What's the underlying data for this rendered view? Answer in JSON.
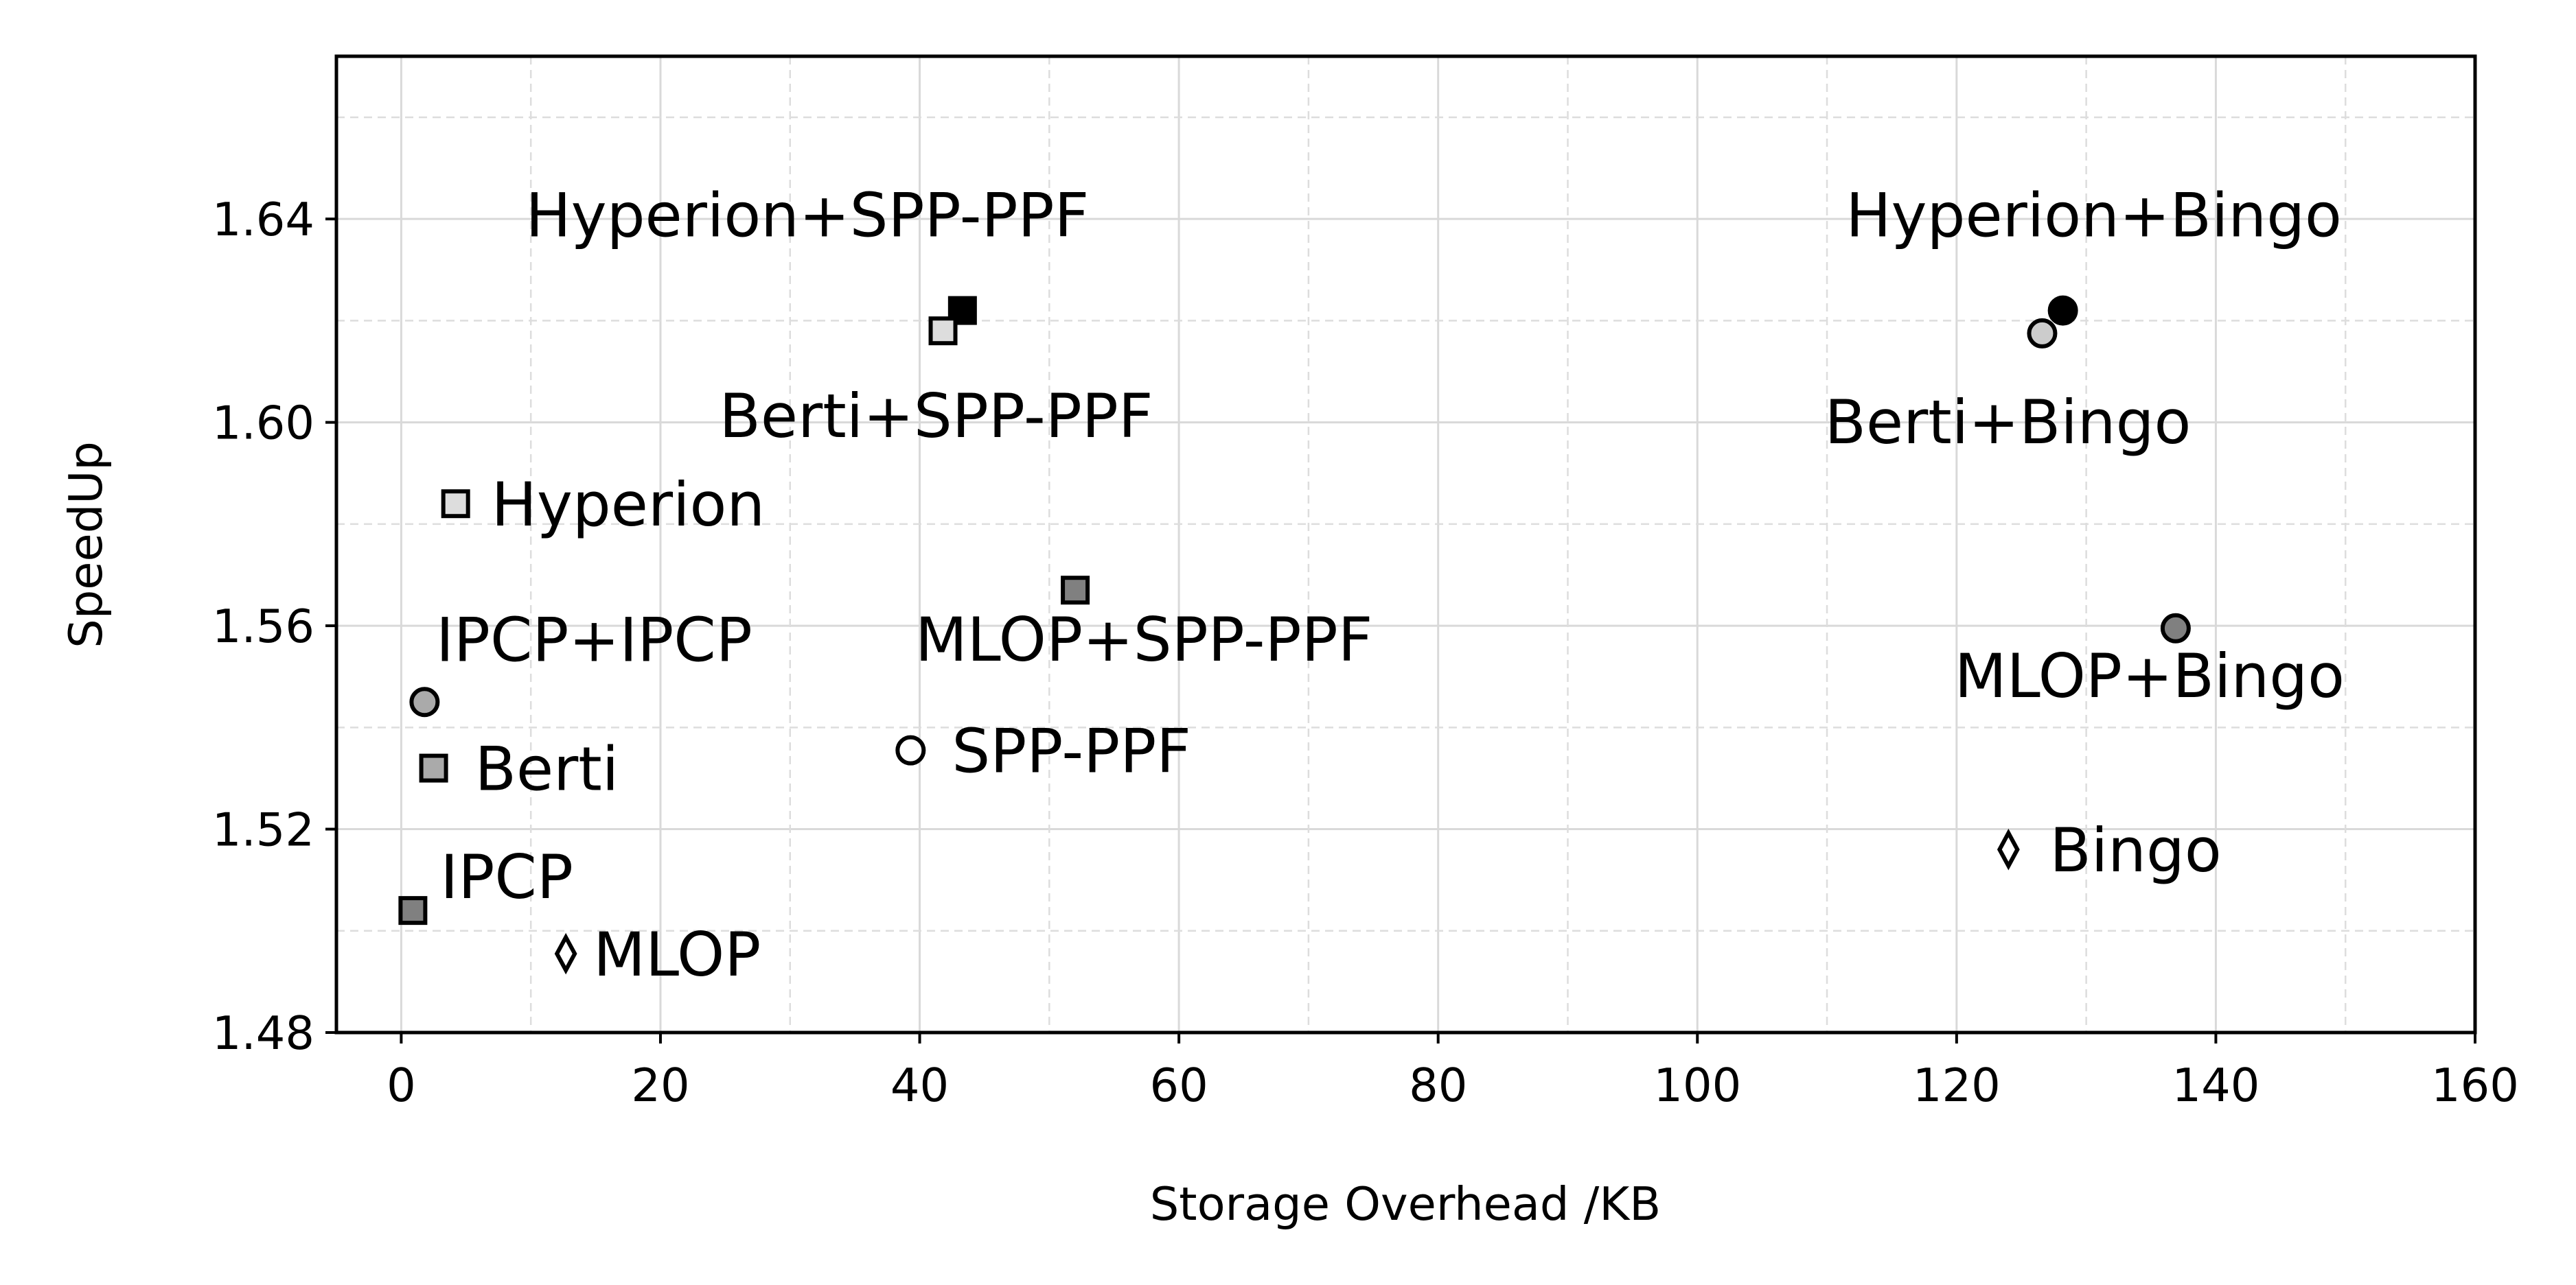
{
  "chart_data": {
    "type": "scatter",
    "title": "",
    "xlabel": "Storage Overhead /KB",
    "ylabel": "SpeedUp",
    "xlim": [
      -5,
      160
    ],
    "ylim": [
      1.48,
      1.672
    ],
    "xticks": [
      0,
      20,
      40,
      60,
      80,
      100,
      120,
      140,
      160
    ],
    "xtick_labels": [
      "0",
      "20",
      "40",
      "60",
      "80",
      "100",
      "120",
      "140",
      "160"
    ],
    "yticks": [
      1.48,
      1.52,
      1.56,
      1.6,
      1.64
    ],
    "ytick_labels": [
      "1.48",
      "1.52",
      "1.56",
      "1.60",
      "1.64"
    ],
    "grid": true,
    "legend": "none",
    "points": [
      {
        "label": "Hyperion+SPP-PPF",
        "x": 43.3,
        "y": 1.622,
        "marker": "square",
        "fill": "#000000"
      },
      {
        "label": "Berti+SPP-PPF",
        "x": 41.8,
        "y": 1.618,
        "marker": "square",
        "fill": "#dddddd"
      },
      {
        "label": "Hyperion+Bingo",
        "x": 128.2,
        "y": 1.622,
        "marker": "circle",
        "fill": "#000000"
      },
      {
        "label": "Berti+Bingo",
        "x": 126.6,
        "y": 1.6175,
        "marker": "circle",
        "fill": "#cccccc"
      },
      {
        "label": "Hyperion",
        "x": 4.2,
        "y": 1.584,
        "marker": "square",
        "fill": "#dddddd"
      },
      {
        "label": "MLOP+SPP-PPF",
        "x": 52.0,
        "y": 1.567,
        "marker": "square",
        "fill": "#808080"
      },
      {
        "label": "MLOP+Bingo",
        "x": 136.9,
        "y": 1.5595,
        "marker": "circle",
        "fill": "#808080"
      },
      {
        "label": "IPCP+IPCP",
        "x": 1.8,
        "y": 1.545,
        "marker": "circle",
        "fill": "#aaaaaa"
      },
      {
        "label": "SPP-PPF",
        "x": 39.3,
        "y": 1.5355,
        "marker": "circle",
        "fill": "#ffffff"
      },
      {
        "label": "Berti",
        "x": 2.5,
        "y": 1.532,
        "marker": "square",
        "fill": "#aaaaaa"
      },
      {
        "label": "Bingo",
        "x": 124.0,
        "y": 1.516,
        "marker": "diamond",
        "fill": "#ffffff"
      },
      {
        "label": "IPCP",
        "x": 0.9,
        "y": 1.504,
        "marker": "square",
        "fill": "#808080"
      },
      {
        "label": "MLOP",
        "x": 12.7,
        "y": 1.4955,
        "marker": "diamond",
        "fill": "#ffffff"
      }
    ]
  }
}
